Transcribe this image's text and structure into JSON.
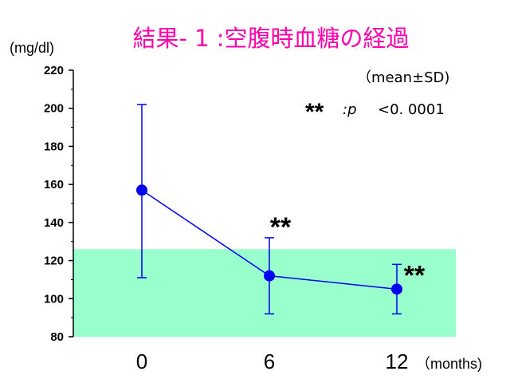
{
  "chart_data": {
    "type": "line",
    "title": "結果- 1 :空腹時血糖の経過",
    "ylabel": "(mg/dl)",
    "xlabel": "（months)",
    "ylim": [
      80,
      220
    ],
    "yticks": [
      80,
      100,
      120,
      140,
      160,
      180,
      200,
      220
    ],
    "categories": [
      "0",
      "6",
      "12"
    ],
    "series": [
      {
        "values": [
          157,
          112,
          105
        ],
        "error_low": [
          111,
          92,
          92
        ],
        "error_high": [
          202,
          132,
          118
        ],
        "significance": [
          "",
          "**",
          "**"
        ]
      }
    ],
    "reference_band": [
      80,
      126
    ],
    "annotations": {
      "stat_note": "（mean±SD)",
      "sig_stars": "**",
      "sig_p": ":p",
      "sig_value": "<0. 0001"
    },
    "colors": {
      "title": "#ff00aa",
      "series": "#0000ee",
      "band": "#99ffcc"
    },
    "grid": false,
    "legend": "none"
  }
}
